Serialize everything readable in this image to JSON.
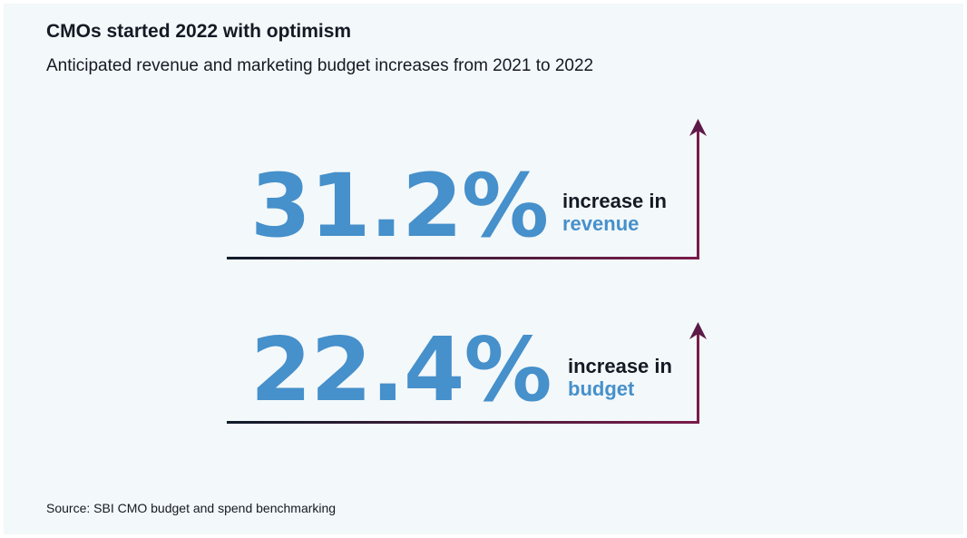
{
  "title": "CMOs started 2022 with optimism",
  "subtitle": "Anticipated revenue and marketing budget increases from 2021 to 2022",
  "stats": [
    {
      "value": "31.2%",
      "label_line1": "increase in",
      "label_line2": "revenue"
    },
    {
      "value": "22.4%",
      "label_line1": "increase in",
      "label_line2": "budget"
    }
  ],
  "source": "Source: SBI CMO budget and spend benchmarking",
  "colors": {
    "background": "#f3f8fa",
    "accent_blue": "#4690cb",
    "text_dark": "#141a24",
    "arrow_start": "#0f1c2a",
    "arrow_end": "#7a1c4a"
  }
}
